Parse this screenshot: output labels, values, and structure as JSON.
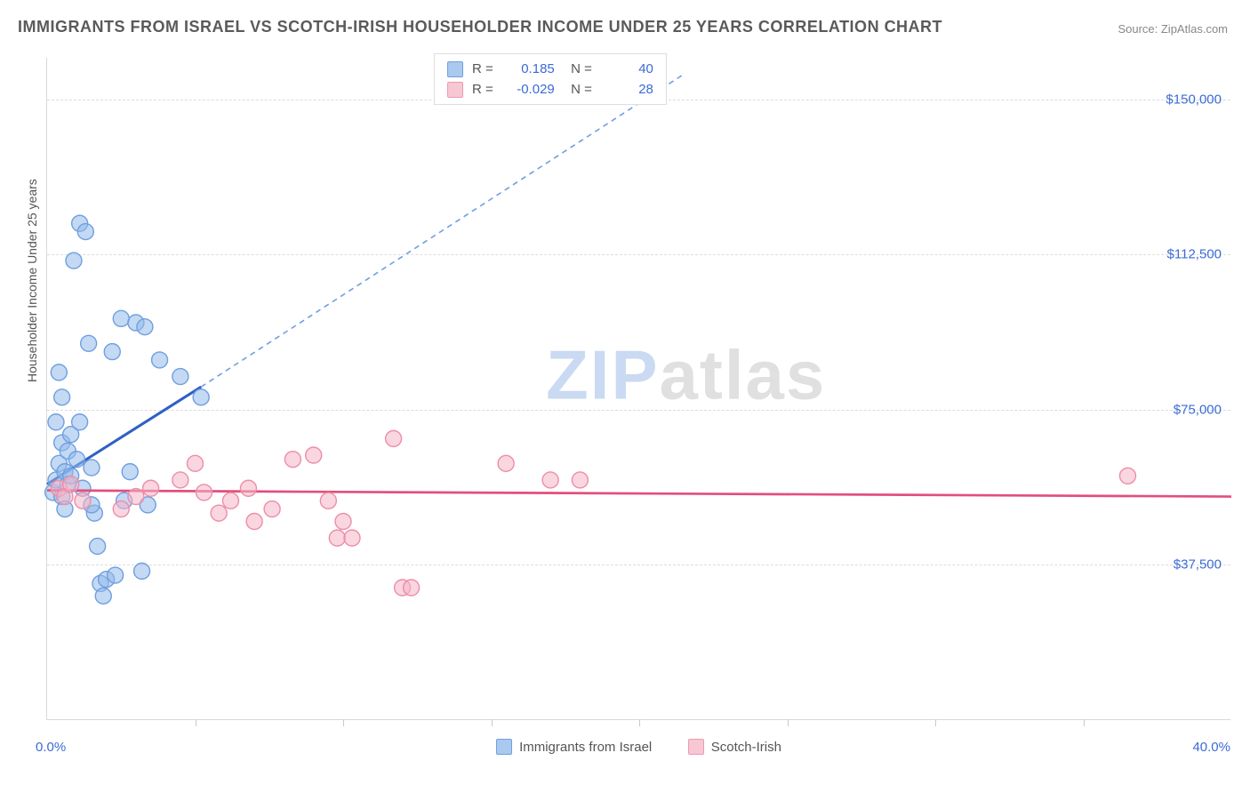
{
  "chart": {
    "type": "scatter",
    "title": "IMMIGRANTS FROM ISRAEL VS SCOTCH-IRISH HOUSEHOLDER INCOME UNDER 25 YEARS CORRELATION CHART",
    "source": "Source: ZipAtlas.com",
    "watermark_left": "ZIP",
    "watermark_right": "atlas",
    "background_color": "#ffffff",
    "axis_color": "#d8d8d8",
    "grid_color": "#dcdcdc",
    "label_color": "#3b6bd6",
    "title_color": "#5a5a5a",
    "title_fontsize": 18,
    "tick_fontsize": 15,
    "x_domain": [
      0,
      40
    ],
    "y_domain": [
      0,
      160000
    ],
    "x_ticks_labeled": [
      {
        "v": 0,
        "label": "0.0%"
      },
      {
        "v": 40,
        "label": "40.0%"
      }
    ],
    "x_ticks_minor": [
      5,
      10,
      15,
      20,
      25,
      30,
      35
    ],
    "y_ticks": [
      {
        "v": 37500,
        "label": "$37,500"
      },
      {
        "v": 75000,
        "label": "$75,000"
      },
      {
        "v": 112500,
        "label": "$112,500"
      },
      {
        "v": 150000,
        "label": "$150,000"
      }
    ],
    "y_axis_label": "Householder Income Under 25 years",
    "series": [
      {
        "key": "israel",
        "name": "Immigrants from Israel",
        "color_fill": "#a9c9ee",
        "color_stroke": "#6f9fe0",
        "marker": "circle",
        "marker_r": 9,
        "correlation_R": "0.185",
        "correlation_N": "40",
        "trend": {
          "solid": {
            "x1": 0,
            "y1": 57000,
            "x2": 5.2,
            "y2": 80500,
            "stroke": "#2f60c4",
            "width": 3
          },
          "dash": {
            "x1": 5.2,
            "y1": 80500,
            "x2": 21.5,
            "y2": 156000,
            "stroke": "#6f9fe0",
            "width": 1.6,
            "dash": "6 5"
          }
        },
        "points": [
          {
            "x": 0.2,
            "y": 55000
          },
          {
            "x": 0.3,
            "y": 72000
          },
          {
            "x": 0.3,
            "y": 58000
          },
          {
            "x": 0.4,
            "y": 84000
          },
          {
            "x": 0.4,
            "y": 62000
          },
          {
            "x": 0.5,
            "y": 67000
          },
          {
            "x": 0.5,
            "y": 54000
          },
          {
            "x": 0.6,
            "y": 60000
          },
          {
            "x": 0.6,
            "y": 51000
          },
          {
            "x": 0.7,
            "y": 65000
          },
          {
            "x": 0.7,
            "y": 57000
          },
          {
            "x": 0.8,
            "y": 59000
          },
          {
            "x": 0.9,
            "y": 111000
          },
          {
            "x": 1.0,
            "y": 63000
          },
          {
            "x": 1.1,
            "y": 120000
          },
          {
            "x": 1.2,
            "y": 56000
          },
          {
            "x": 1.3,
            "y": 118000
          },
          {
            "x": 1.4,
            "y": 91000
          },
          {
            "x": 1.5,
            "y": 61000
          },
          {
            "x": 1.6,
            "y": 50000
          },
          {
            "x": 1.7,
            "y": 42000
          },
          {
            "x": 1.8,
            "y": 33000
          },
          {
            "x": 1.9,
            "y": 30000
          },
          {
            "x": 2.0,
            "y": 34000
          },
          {
            "x": 2.2,
            "y": 89000
          },
          {
            "x": 2.3,
            "y": 35000
          },
          {
            "x": 2.5,
            "y": 97000
          },
          {
            "x": 2.6,
            "y": 53000
          },
          {
            "x": 2.8,
            "y": 60000
          },
          {
            "x": 3.0,
            "y": 96000
          },
          {
            "x": 3.2,
            "y": 36000
          },
          {
            "x": 3.3,
            "y": 95000
          },
          {
            "x": 3.4,
            "y": 52000
          },
          {
            "x": 3.8,
            "y": 87000
          },
          {
            "x": 4.5,
            "y": 83000
          },
          {
            "x": 5.2,
            "y": 78000
          },
          {
            "x": 0.5,
            "y": 78000
          },
          {
            "x": 0.8,
            "y": 69000
          },
          {
            "x": 1.1,
            "y": 72000
          },
          {
            "x": 1.5,
            "y": 52000
          }
        ]
      },
      {
        "key": "scotch",
        "name": "Scotch-Irish",
        "color_fill": "#f7c7d4",
        "color_stroke": "#ec9ab1",
        "marker": "circle",
        "marker_r": 9,
        "correlation_R": "-0.029",
        "correlation_N": "28",
        "trend": {
          "solid": {
            "x1": 0,
            "y1": 55500,
            "x2": 40,
            "y2": 54000,
            "stroke": "#e24e7d",
            "width": 2.7
          }
        },
        "points": [
          {
            "x": 0.4,
            "y": 56000
          },
          {
            "x": 0.6,
            "y": 54000
          },
          {
            "x": 0.8,
            "y": 57000
          },
          {
            "x": 1.2,
            "y": 53000
          },
          {
            "x": 2.5,
            "y": 51000
          },
          {
            "x": 3.0,
            "y": 54000
          },
          {
            "x": 3.5,
            "y": 56000
          },
          {
            "x": 4.5,
            "y": 58000
          },
          {
            "x": 5.0,
            "y": 62000
          },
          {
            "x": 5.3,
            "y": 55000
          },
          {
            "x": 5.8,
            "y": 50000
          },
          {
            "x": 6.2,
            "y": 53000
          },
          {
            "x": 6.8,
            "y": 56000
          },
          {
            "x": 7.0,
            "y": 48000
          },
          {
            "x": 7.6,
            "y": 51000
          },
          {
            "x": 8.3,
            "y": 63000
          },
          {
            "x": 9.0,
            "y": 64000
          },
          {
            "x": 9.5,
            "y": 53000
          },
          {
            "x": 9.8,
            "y": 44000
          },
          {
            "x": 10.0,
            "y": 48000
          },
          {
            "x": 10.3,
            "y": 44000
          },
          {
            "x": 11.7,
            "y": 68000
          },
          {
            "x": 12.0,
            "y": 32000
          },
          {
            "x": 12.3,
            "y": 32000
          },
          {
            "x": 15.5,
            "y": 62000
          },
          {
            "x": 17.0,
            "y": 58000
          },
          {
            "x": 18.0,
            "y": 58000
          },
          {
            "x": 36.5,
            "y": 59000
          }
        ]
      }
    ],
    "legend_bottom": [
      {
        "swatch": "blue",
        "label": "Immigrants from Israel"
      },
      {
        "swatch": "pink",
        "label": "Scotch-Irish"
      }
    ]
  }
}
